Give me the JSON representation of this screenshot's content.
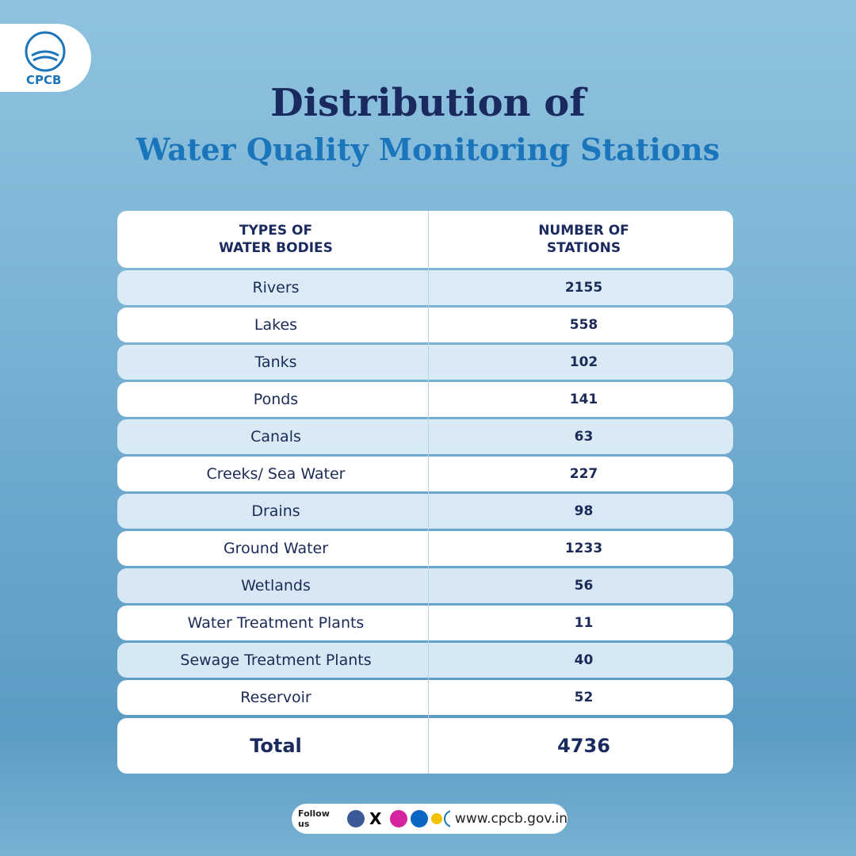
{
  "header": {
    "logo_text": "CPCB",
    "title_line1": "Distribution of",
    "title_line2": "Water Quality Monitoring Stations"
  },
  "table": {
    "columns": [
      "TYPES OF\nWATER BODIES",
      "NUMBER OF\nSTATIONS"
    ],
    "rows": [
      [
        "Rivers",
        2155
      ],
      [
        "Lakes",
        558
      ],
      [
        "Tanks",
        102
      ],
      [
        "Ponds",
        141
      ],
      [
        "Canals",
        63
      ],
      [
        "Creeks/ Sea Water",
        227
      ],
      [
        "Drains",
        98
      ],
      [
        "Ground Water",
        1233
      ],
      [
        "Wetlands",
        56
      ],
      [
        "Water Treatment Plants",
        11
      ],
      [
        "Sewage Treatment Plants",
        40
      ],
      [
        "Reservoir",
        52
      ]
    ],
    "total": [
      "Total",
      4736
    ]
  },
  "footer": {
    "follow": "Follow us",
    "website": "www.cpcb.gov.in"
  }
}
